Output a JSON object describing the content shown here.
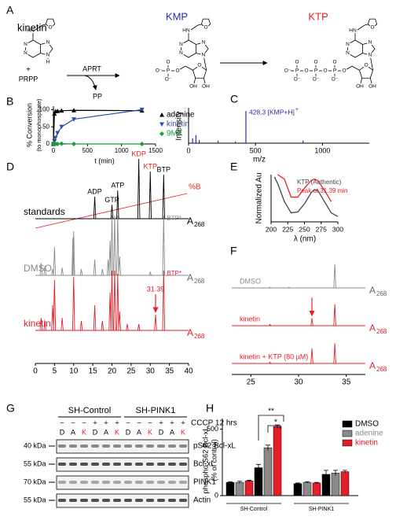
{
  "panel_labels": [
    "A",
    "B",
    "C",
    "D",
    "E",
    "F",
    "G",
    "H"
  ],
  "scheme": {
    "structures": [
      {
        "name": "kinetin",
        "color": "#000000",
        "atoms": [
          "HN",
          "N",
          "N",
          "N",
          "N",
          "H",
          "O"
        ]
      },
      {
        "name": "KMP",
        "color": "#2b2ba8",
        "atoms": [
          "HN",
          "N",
          "N",
          "N",
          "N",
          "O",
          "O",
          "OH",
          "OH",
          "O",
          "P",
          "O",
          "O⁻",
          "O⁻"
        ]
      },
      {
        "name": "KTP",
        "color": "#e3202a",
        "atoms": [
          "HN",
          "N",
          "N",
          "N",
          "N",
          "O",
          "O",
          "OH",
          "OH",
          "O",
          "P",
          "O",
          "O⁻",
          "O",
          "P",
          "O",
          "O⁻",
          "O",
          "P",
          "O",
          "O⁻",
          "O⁻"
        ]
      }
    ],
    "plus": "+",
    "cosubstrate": "PRPP",
    "enzyme": "APRT",
    "byproduct": "PP"
  },
  "conversion": {
    "type": "scatter",
    "y_label": "% Conversion",
    "y_sublabel": "(to monophosphate)",
    "x_label": "t (min)",
    "xlim": [
      0,
      1500
    ],
    "xticks": [
      0,
      500,
      1000,
      1500
    ],
    "ylim": [
      0,
      110
    ],
    "yticks": [
      0,
      50,
      100
    ],
    "x": [
      0,
      15,
      30,
      60,
      120,
      300,
      1300
    ],
    "series": [
      {
        "name": "adenine",
        "color": "#000000",
        "marker": "triangle-up",
        "values": [
          0,
          88,
          95,
          96,
          97,
          98,
          97
        ]
      },
      {
        "name": "kinetin",
        "color": "#2b4fa8",
        "marker": "triangle-down",
        "values": [
          0,
          8,
          18,
          32,
          50,
          72,
          100
        ]
      },
      {
        "name": "9MK",
        "color": "#1f9a3a",
        "marker": "diamond",
        "values": [
          0,
          0,
          0,
          0,
          1,
          0,
          0
        ]
      }
    ]
  },
  "mass_spec": {
    "type": "bar",
    "y_label": "Intensity",
    "x_label": "m/z",
    "xlim": [
      0,
      1350
    ],
    "xticks": [
      0,
      500,
      1000
    ],
    "ylim": [
      0,
      110
    ],
    "color": "#2b2ba8",
    "x": [
      30,
      55,
      80,
      220,
      350,
      428.3,
      855
    ],
    "values": [
      15,
      25,
      10,
      8,
      5,
      100,
      8
    ],
    "annotation": "428.3 [KMP+H]",
    "annotation_sup": "+"
  },
  "hplc": {
    "type": "chromatogram",
    "xlim": [
      0,
      40
    ],
    "xticks": [
      0,
      5,
      10,
      15,
      20,
      25,
      30,
      35,
      40
    ],
    "gradient_label": "%B",
    "gradient_color": "#e3202a",
    "detector": "A",
    "wavelength": "268",
    "traces": [
      {
        "name": "standards",
        "color": "#000000",
        "peaks_t": [
          15.5,
          20,
          21.5,
          27,
          30,
          33.5
        ],
        "peaks_h": [
          0.35,
          0.22,
          0.45,
          0.95,
          0.75,
          0.7
        ],
        "peak_labels": [
          {
            "text": "ADP",
            "color": "#000000"
          },
          {
            "text": "GTP",
            "color": "#000000"
          },
          {
            "text": "ATP",
            "color": "#000000"
          },
          {
            "text": "KDP",
            "color": "#e3202a"
          },
          {
            "text": "KTP",
            "color": "#e3202a"
          },
          {
            "text": "BTP",
            "color": "#000000"
          }
        ]
      },
      {
        "name": "DMSO",
        "color": "#8a8a8a",
        "peaks_t": [
          1.5,
          2.5,
          4.5,
          5,
          7,
          9.8,
          10,
          12,
          15.5,
          17.5,
          19,
          19.5,
          20,
          20.7,
          21.5,
          22,
          30,
          33.5
        ],
        "peaks_h": [
          0.2,
          0.15,
          0.1,
          0.45,
          0.12,
          0.6,
          0.7,
          0.1,
          0.25,
          0.1,
          0.25,
          0.55,
          0.95,
          0.95,
          0.95,
          0.3,
          0.05,
          0.95
        ],
        "peak_labels": [
          null,
          null,
          null,
          null,
          null,
          null,
          null,
          null,
          null,
          null,
          null,
          null,
          null,
          null,
          null,
          null,
          null,
          {
            "text": "BTP*",
            "color": "#8a8a8a"
          }
        ]
      },
      {
        "name": "kinetin",
        "color": "#e3202a",
        "peaks_t": [
          1.5,
          2.5,
          4.5,
          5,
          7,
          10,
          12,
          15.5,
          17.5,
          19.5,
          20,
          20.7,
          21.5,
          22,
          24,
          27,
          31.39,
          33.5
        ],
        "peaks_h": [
          0.2,
          0.15,
          0.4,
          0.8,
          0.2,
          0.85,
          0.15,
          0.4,
          0.15,
          0.6,
          0.95,
          0.95,
          0.9,
          0.3,
          0.1,
          0.1,
          0.25,
          0.95
        ],
        "peak_labels": [
          null,
          null,
          null,
          null,
          null,
          null,
          null,
          null,
          null,
          null,
          null,
          null,
          null,
          null,
          null,
          null,
          {
            "text": "31.39",
            "color": "#e3202a",
            "arrow": true
          },
          {
            "text": "BTP*",
            "color": "#e3202a"
          }
        ]
      }
    ]
  },
  "uv": {
    "type": "line",
    "y_label": "Normalized Au",
    "x_label": "λ (nm)",
    "xlim": [
      200,
      300
    ],
    "xticks": [
      200,
      225,
      250,
      275,
      300
    ],
    "ylim": [
      0,
      1.05
    ],
    "x": [
      205,
      210,
      220,
      230,
      240,
      250,
      260,
      265,
      270,
      280,
      290,
      300
    ],
    "series": [
      {
        "name": "KTP (Authentic)",
        "color": "#444444",
        "values": [
          1.0,
          0.85,
          0.45,
          0.2,
          0.22,
          0.4,
          0.65,
          0.72,
          0.7,
          0.45,
          0.2,
          0.12
        ]
      },
      {
        "name": "Peak at 31.39 min",
        "color": "#e3202a",
        "values": [
          null,
          1.05,
          0.95,
          0.55,
          0.55,
          0.75,
          0.92,
          0.95,
          0.92,
          0.7,
          0.45,
          null
        ]
      }
    ]
  },
  "hplc_zoom": {
    "type": "chromatogram",
    "xlim": [
      23,
      37
    ],
    "xticks": [
      25,
      30,
      35
    ],
    "detector": "A",
    "wavelength": "268",
    "traces": [
      {
        "name": "DMSO",
        "color": "#8a8a8a",
        "peaks_t": [
          27,
          29,
          33.8
        ],
        "peaks_h": [
          0.03,
          0.03,
          0.95
        ],
        "peak_labels": [
          null,
          null,
          null
        ]
      },
      {
        "name": "kinetin",
        "color": "#e3202a",
        "peaks_t": [
          27,
          31.4,
          33.8
        ],
        "peaks_h": [
          0.05,
          0.3,
          0.85
        ],
        "peak_labels": [
          null,
          {
            "arrow": true,
            "color": "#e3202a"
          },
          null
        ]
      },
      {
        "name": "kinetin + KTP (80 µM)",
        "color": "#e3202a",
        "peaks_t": [
          27,
          31.4,
          33.8
        ],
        "peaks_h": [
          0.05,
          0.6,
          0.8
        ],
        "peak_labels": [
          null,
          null,
          null
        ]
      }
    ]
  },
  "western": {
    "groups": [
      "SH-Control",
      "SH-PINK1"
    ],
    "treatment": "CCCP 12 hrs",
    "treatment_signs": [
      "−",
      "−",
      "−",
      "+",
      "+",
      "+",
      "−",
      "−",
      "−",
      "+",
      "+",
      "+"
    ],
    "lanes": [
      "D",
      "A",
      "K",
      "D",
      "A",
      "K",
      "D",
      "A",
      "K",
      "D",
      "A",
      "K"
    ],
    "lane_colors": {
      "D": "#000000",
      "A": "#000000",
      "K": "#e3202a"
    },
    "rows": [
      {
        "marker": "40 kDa",
        "target": "pS62 Bcl-xL"
      },
      {
        "marker": "55 kDa",
        "target": "Bcl-xL"
      },
      {
        "marker": "70 kDa",
        "target": "PINK1"
      },
      {
        "marker": "55 kDa",
        "target": "Actin"
      }
    ]
  },
  "quant": {
    "type": "bar",
    "y_label": "phospho S62 Bcl-xL",
    "y_sublabel": "(% of control)",
    "ylim": [
      0,
      580
    ],
    "yticks": [
      0,
      500
    ],
    "groups": [
      "SH-Control",
      "SH-PINK1"
    ],
    "series": [
      {
        "name": "DMSO",
        "color": "#000000",
        "values": [
          100,
          210,
          90,
          160
        ],
        "errors": [
          5,
          25,
          5,
          30
        ]
      },
      {
        "name": "adenine",
        "color": "#8a8a8a",
        "values": [
          100,
          360,
          100,
          170
        ],
        "errors": [
          8,
          20,
          5,
          20
        ]
      },
      {
        "name": "kinetin",
        "color": "#e3202a",
        "values": [
          110,
          520,
          95,
          180
        ],
        "errors": [
          5,
          12,
          5,
          10
        ]
      }
    ],
    "significance": [
      "**",
      "*"
    ]
  }
}
